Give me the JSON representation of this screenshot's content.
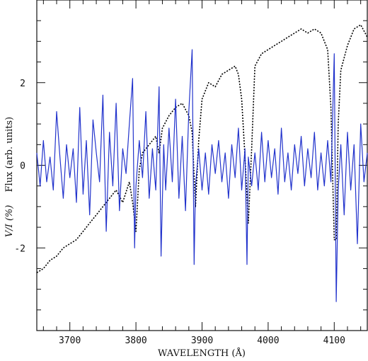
{
  "chart_data": {
    "type": "line",
    "title": "",
    "xlabel": "WAVELENGTH (Å)",
    "ylabel_part1": "V/I (%)",
    "ylabel_part2": "Flux (arb. units)",
    "xlim": [
      3650,
      4150
    ],
    "ylim": [
      -4.0,
      4.0
    ],
    "x_ticks": [
      3700,
      3800,
      3900,
      4000,
      4100
    ],
    "x_tick_labels": [
      "3700",
      "3800",
      "3900",
      "4000",
      "4100"
    ],
    "y_ticks": [
      -2,
      0,
      2
    ],
    "y_tick_labels": [
      "-2",
      "0",
      "2"
    ],
    "grid": false,
    "colors": {
      "vi": "#2233cc",
      "flux": "#000000"
    },
    "series": [
      {
        "key": "vi",
        "style": "solid",
        "x": [
          3650,
          3655,
          3660,
          3665,
          3670,
          3675,
          3680,
          3685,
          3690,
          3695,
          3700,
          3705,
          3710,
          3715,
          3720,
          3725,
          3730,
          3735,
          3740,
          3745,
          3750,
          3755,
          3760,
          3765,
          3770,
          3775,
          3780,
          3785,
          3790,
          3795,
          3798,
          3800,
          3805,
          3810,
          3815,
          3820,
          3825,
          3830,
          3835,
          3838,
          3842,
          3845,
          3850,
          3855,
          3860,
          3865,
          3870,
          3875,
          3880,
          3885,
          3888,
          3890,
          3895,
          3900,
          3905,
          3910,
          3915,
          3920,
          3925,
          3930,
          3935,
          3940,
          3945,
          3950,
          3955,
          3960,
          3965,
          3968,
          3970,
          3975,
          3980,
          3985,
          3990,
          3995,
          4000,
          4005,
          4010,
          4015,
          4020,
          4025,
          4030,
          4035,
          4040,
          4045,
          4050,
          4055,
          4060,
          4065,
          4070,
          4075,
          4080,
          4085,
          4090,
          4095,
          4100,
          4103,
          4106,
          4110,
          4115,
          4120,
          4125,
          4130,
          4135,
          4140,
          4145,
          4150
        ],
        "y": [
          0.3,
          -0.5,
          0.6,
          -0.4,
          0.2,
          -0.6,
          1.3,
          0.2,
          -0.8,
          0.5,
          -0.3,
          0.4,
          -0.9,
          1.4,
          -0.7,
          0.6,
          -1.2,
          1.1,
          0.3,
          -0.4,
          1.7,
          -1.6,
          0.8,
          -0.5,
          1.5,
          -1.1,
          0.4,
          -0.2,
          1.0,
          2.1,
          -2.0,
          -0.5,
          0.6,
          -0.3,
          1.3,
          -0.8,
          0.4,
          -0.6,
          1.9,
          -2.2,
          0.5,
          -0.6,
          0.9,
          -0.4,
          1.6,
          -0.8,
          0.7,
          -1.1,
          1.3,
          2.8,
          -2.4,
          -0.5,
          0.4,
          -0.6,
          0.3,
          -0.7,
          0.5,
          -0.2,
          0.6,
          -0.4,
          0.3,
          -0.8,
          0.5,
          -0.3,
          0.9,
          -0.6,
          0.4,
          -2.4,
          0.2,
          -0.5,
          0.3,
          -0.6,
          0.8,
          -0.4,
          0.6,
          -0.3,
          0.4,
          -0.7,
          0.9,
          -0.4,
          0.3,
          -0.6,
          0.5,
          -0.2,
          0.7,
          -0.5,
          0.4,
          -0.3,
          0.8,
          -0.6,
          0.3,
          -0.5,
          0.6,
          -0.4,
          2.7,
          -3.3,
          -0.6,
          0.5,
          -1.2,
          0.8,
          -0.6,
          0.5,
          -1.9,
          1.0,
          -0.4,
          0.3
        ]
      },
      {
        "key": "flux",
        "style": "dotted",
        "x": [
          3650,
          3660,
          3670,
          3680,
          3690,
          3700,
          3710,
          3720,
          3730,
          3740,
          3750,
          3760,
          3770,
          3780,
          3790,
          3795,
          3800,
          3805,
          3810,
          3820,
          3830,
          3835,
          3840,
          3850,
          3860,
          3870,
          3880,
          3885,
          3890,
          3895,
          3900,
          3910,
          3920,
          3930,
          3940,
          3950,
          3955,
          3960,
          3965,
          3970,
          3975,
          3980,
          3990,
          4000,
          4010,
          4020,
          4030,
          4040,
          4050,
          4060,
          4070,
          4080,
          4090,
          4095,
          4100,
          4103,
          4106,
          4110,
          4120,
          4130,
          4140,
          4150
        ],
        "y": [
          -2.6,
          -2.5,
          -2.3,
          -2.2,
          -2.0,
          -1.9,
          -1.8,
          -1.6,
          -1.4,
          -1.2,
          -1.0,
          -0.8,
          -0.6,
          -0.9,
          -0.4,
          -0.9,
          -1.6,
          -0.1,
          0.3,
          0.5,
          0.7,
          0.3,
          0.9,
          1.2,
          1.4,
          1.5,
          1.2,
          0.8,
          -1.0,
          0.6,
          1.6,
          2.0,
          1.9,
          2.2,
          2.3,
          2.4,
          2.2,
          1.6,
          0.2,
          -1.4,
          0.4,
          2.4,
          2.7,
          2.8,
          2.9,
          3.0,
          3.1,
          3.2,
          3.3,
          3.2,
          3.3,
          3.2,
          2.8,
          1.4,
          -1.8,
          -1.8,
          1.0,
          2.3,
          2.9,
          3.3,
          3.4,
          3.1
        ]
      }
    ]
  }
}
